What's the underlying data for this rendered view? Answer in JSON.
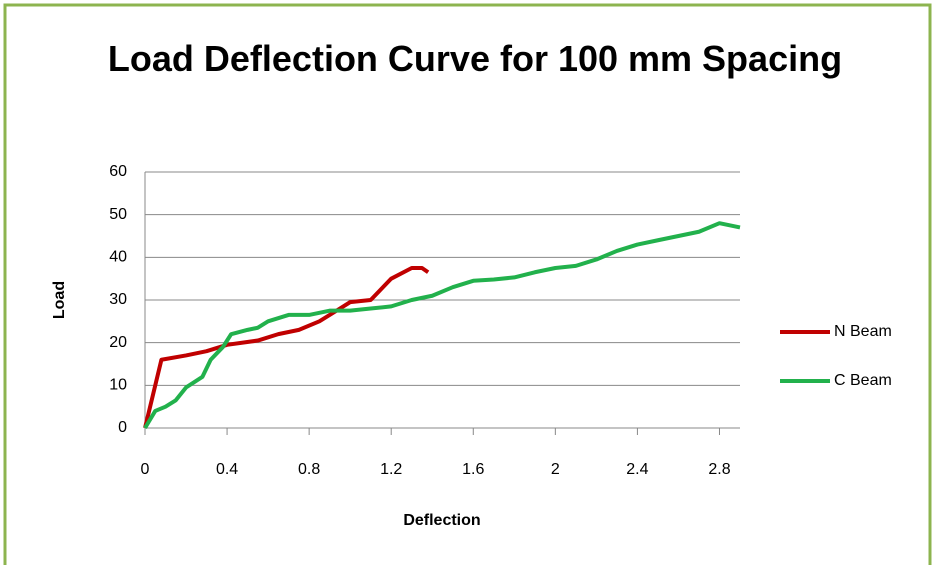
{
  "chart_data": {
    "type": "line",
    "title": "Load Deflection Curve for 100 mm Spacing",
    "x_label": "Deflection",
    "y_label": "Load",
    "xlim": [
      0,
      2.9
    ],
    "xticks": [
      0,
      0.4,
      0.8,
      1.2,
      1.6,
      2,
      2.4,
      2.8
    ],
    "ylim": [
      0,
      60
    ],
    "yticks": [
      0,
      10,
      20,
      30,
      40,
      50,
      60
    ],
    "grid": true,
    "legend": "right",
    "series": [
      {
        "name": "N Beam",
        "color": "#c00000",
        "x": [
          0,
          0.08,
          0.2,
          0.3,
          0.4,
          0.55,
          0.65,
          0.75,
          0.85,
          0.95,
          1.0,
          1.1,
          1.2,
          1.3,
          1.35,
          1.38
        ],
        "values": [
          0,
          16,
          17,
          18,
          19.5,
          20.5,
          22,
          23,
          25,
          28,
          29.5,
          30,
          35,
          37.5,
          37.5,
          36.5
        ]
      },
      {
        "name": "C Beam",
        "color": "#22b14c",
        "x": [
          0,
          0.05,
          0.1,
          0.15,
          0.2,
          0.28,
          0.32,
          0.38,
          0.42,
          0.5,
          0.55,
          0.6,
          0.7,
          0.8,
          0.9,
          1.0,
          1.1,
          1.2,
          1.3,
          1.4,
          1.5,
          1.6,
          1.7,
          1.8,
          1.9,
          2.0,
          2.1,
          2.2,
          2.3,
          2.4,
          2.5,
          2.6,
          2.7,
          2.8,
          2.9
        ],
        "values": [
          0,
          4,
          5,
          6.5,
          9.5,
          12,
          16,
          19,
          22,
          23,
          23.5,
          25,
          26.5,
          26.5,
          27.5,
          27.5,
          28,
          28.5,
          30,
          31,
          33,
          34.5,
          34.8,
          35.3,
          36.5,
          37.5,
          38,
          39.5,
          41.5,
          43,
          44,
          45,
          46,
          48,
          47
        ]
      }
    ]
  }
}
